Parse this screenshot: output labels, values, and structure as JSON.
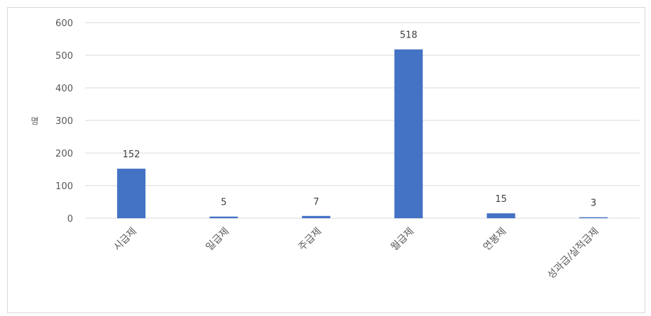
{
  "chart_data": {
    "type": "bar",
    "title": "",
    "xlabel": "",
    "ylabel": "명",
    "categories": [
      "시급제",
      "일급제",
      "주급제",
      "월급제",
      "연봉제",
      "성과급/실적급제"
    ],
    "values": [
      152,
      5,
      7,
      518,
      15,
      3
    ],
    "ylim": [
      0,
      600
    ],
    "yticks": [
      0,
      100,
      200,
      300,
      400,
      500,
      600
    ],
    "grid": true,
    "legend": "none",
    "bar_color": "#4472C4",
    "grid_color": "#d9d9d9"
  }
}
